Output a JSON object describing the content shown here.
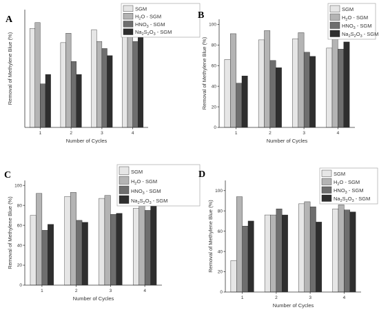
{
  "legend_labels": [
    "SGM",
    "H2O - SGM",
    "HNO3 - SGM",
    "Na2S2O3 - SGM"
  ],
  "series_colors": [
    "#e6e6e6",
    "#b4b4b4",
    "#6e6e6e",
    "#2e2e2e"
  ],
  "chart_data": [
    {
      "type": "bar",
      "panel_label": "A",
      "categories": [
        "1",
        "2",
        "3",
        "4"
      ],
      "xlabel": "Number of Cycles",
      "ylabel": "Removal of Methylene Blue (%)",
      "ylim": [
        0,
        100
      ],
      "yticks": [],
      "series": [
        {
          "name": "SGM",
          "values": [
            84,
            72,
            83,
            83
          ]
        },
        {
          "name": "H2O - SGM",
          "values": [
            89,
            80,
            73,
            80
          ]
        },
        {
          "name": "HNO3 - SGM",
          "values": [
            37,
            56,
            67,
            73
          ]
        },
        {
          "name": "Na2S2O3 - SGM",
          "values": [
            45,
            45,
            61,
            78
          ]
        }
      ],
      "legend_position": "top-right"
    },
    {
      "type": "bar",
      "panel_label": "B",
      "categories": [
        "1",
        "2",
        "3",
        "4"
      ],
      "xlabel": "Number of Cycles",
      "ylabel": "Removal of Methylene Blue (%)",
      "ylim": [
        0,
        105
      ],
      "yticks": [
        0,
        20,
        40,
        60,
        80,
        100
      ],
      "series": [
        {
          "name": "SGM",
          "values": [
            66,
            85,
            86,
            77
          ]
        },
        {
          "name": "H2O - SGM",
          "values": [
            91,
            94,
            92,
            88
          ]
        },
        {
          "name": "HNO3 - SGM",
          "values": [
            43,
            65,
            73,
            76
          ]
        },
        {
          "name": "Na2S2O3 - SGM",
          "values": [
            50,
            58,
            69,
            83
          ]
        }
      ],
      "legend_position": "top-right"
    },
    {
      "type": "bar",
      "panel_label": "C",
      "categories": [
        "1",
        "2",
        "3",
        "4"
      ],
      "xlabel": "Number of Cycles",
      "ylabel": "Removal of Methylene Blue (%)",
      "ylim": [
        0,
        105
      ],
      "yticks": [
        0,
        20,
        40,
        60,
        80,
        100
      ],
      "series": [
        {
          "name": "SGM",
          "values": [
            70,
            89,
            87,
            77
          ]
        },
        {
          "name": "H2O - SGM",
          "values": [
            92,
            93,
            90,
            87
          ]
        },
        {
          "name": "HNO3 - SGM",
          "values": [
            55,
            65,
            71,
            75
          ]
        },
        {
          "name": "Na2S2O3 - SGM",
          "values": [
            61,
            63,
            72,
            83
          ]
        }
      ],
      "legend_position": "top-right"
    },
    {
      "type": "bar",
      "panel_label": "D",
      "categories": [
        "1",
        "2",
        "3",
        "4"
      ],
      "xlabel": "Number of Cycles",
      "ylabel": "Removal of Methylene Blue (%)",
      "ylim": [
        0,
        110
      ],
      "yticks": [
        0,
        20,
        40,
        60,
        80,
        100
      ],
      "series": [
        {
          "name": "SGM",
          "values": [
            31,
            76,
            87,
            82
          ]
        },
        {
          "name": "H2O - SGM",
          "values": [
            94,
            76,
            89,
            86
          ]
        },
        {
          "name": "HNO3 - SGM",
          "values": [
            65,
            82,
            84,
            81
          ]
        },
        {
          "name": "Na2S2O3 - SGM",
          "values": [
            70,
            76,
            69,
            79
          ]
        }
      ],
      "legend_position": "top-right"
    }
  ]
}
